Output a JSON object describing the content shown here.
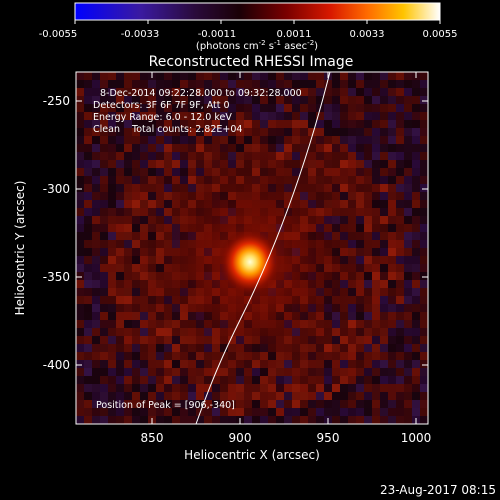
{
  "colorbar": {
    "ticks": [
      "-0.0055",
      "-0.0033",
      "-0.0011",
      "0.0011",
      "0.0033",
      "0.0055"
    ],
    "units_prefix": "(photons cm",
    "units_exp1": "-2",
    "units_s": " s",
    "units_exp2": "-1",
    "units_asec": " asec",
    "units_exp3": "-2",
    "units_suffix": ")"
  },
  "title": "Reconstructed RHESSI Image",
  "info": {
    "line1": "8-Dec-2014 09:22:28.000 to 09:32:28.000",
    "line2": "Detectors: 3F 6F 7F 9F, Att 0",
    "line3": "Energy Range: 6.0 - 12.0 keV",
    "line4": "Clean    Total counts: 2.82E+04"
  },
  "peak_label": "Position of Peak = [906,-340]",
  "axes": {
    "xlabel": "Heliocentric X (arcsec)",
    "ylabel": "Heliocentric Y (arcsec)",
    "xticks": [
      "850",
      "900",
      "950",
      "1000"
    ],
    "yticks": [
      "-250",
      "-300",
      "-350",
      "-400"
    ]
  },
  "footer_date": "23-Aug-2017 08:15",
  "colors": {
    "bg": "#000000",
    "fg": "#ffffff",
    "limb_line": "#ffffff",
    "source_core": "#ffffc8",
    "source_mid": "#ffcc00",
    "source_outer": "#ff3a00"
  }
}
